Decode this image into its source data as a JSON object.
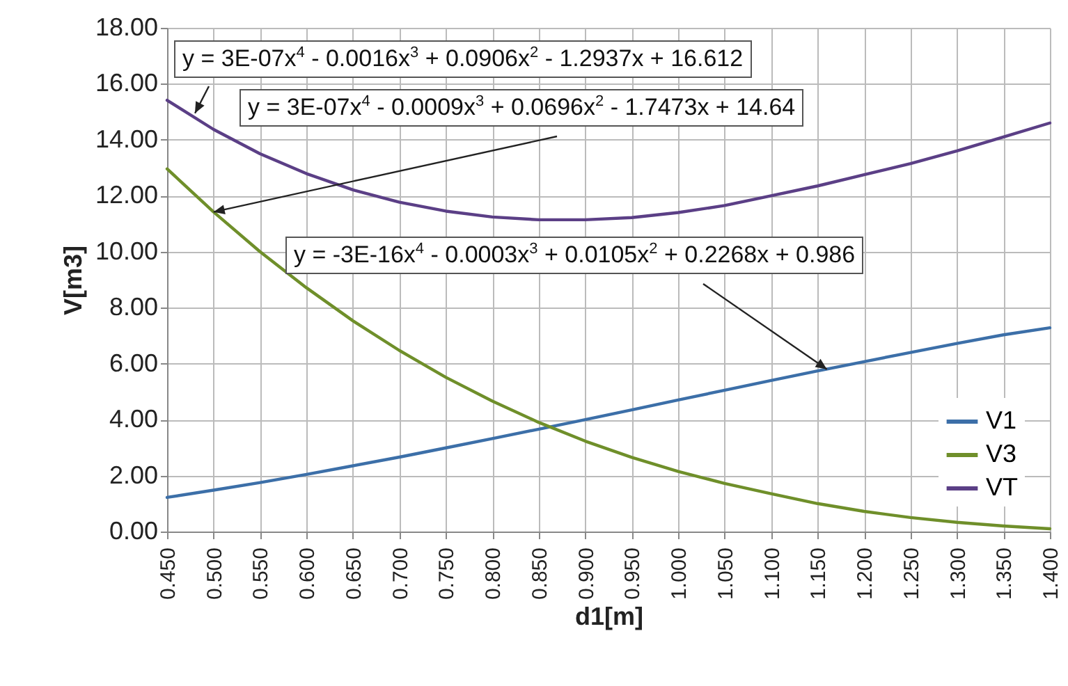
{
  "chart_data": {
    "type": "line",
    "xlabel": "d1[m]",
    "ylabel": "V[m3]",
    "x": [
      0.45,
      0.5,
      0.55,
      0.6,
      0.65,
      0.7,
      0.75,
      0.8,
      0.85,
      0.9,
      0.95,
      1.0,
      1.05,
      1.1,
      1.15,
      1.2,
      1.25,
      1.3,
      1.35,
      1.4
    ],
    "series": [
      {
        "name": "V1",
        "color": "#3c6fa8",
        "values": [
          1.22,
          1.48,
          1.75,
          2.04,
          2.35,
          2.66,
          2.99,
          3.32,
          3.66,
          4.0,
          4.35,
          4.7,
          5.05,
          5.4,
          5.74,
          6.07,
          6.4,
          6.72,
          7.03,
          7.28
        ]
      },
      {
        "name": "V3",
        "color": "#6f8f2a",
        "values": [
          12.96,
          11.42,
          10.0,
          8.71,
          7.53,
          6.47,
          5.51,
          4.66,
          3.9,
          3.23,
          2.65,
          2.15,
          1.72,
          1.35,
          1.0,
          0.72,
          0.5,
          0.33,
          0.2,
          0.1
        ]
      },
      {
        "name": "VT",
        "color": "#5b3f86",
        "values": [
          15.41,
          14.37,
          13.5,
          12.79,
          12.21,
          11.77,
          11.45,
          11.24,
          11.14,
          11.14,
          11.22,
          11.4,
          11.65,
          12.0,
          12.35,
          12.75,
          13.15,
          13.6,
          14.1,
          14.6
        ]
      }
    ],
    "xlim": [
      0.45,
      1.4
    ],
    "xticks": [
      {
        "value": 0.45,
        "label": "0.450"
      },
      {
        "value": 0.5,
        "label": "0.500"
      },
      {
        "value": 0.55,
        "label": "0.550"
      },
      {
        "value": 0.6,
        "label": "0.600"
      },
      {
        "value": 0.65,
        "label": "0.650"
      },
      {
        "value": 0.7,
        "label": "0.700"
      },
      {
        "value": 0.75,
        "label": "0.750"
      },
      {
        "value": 0.8,
        "label": "0.800"
      },
      {
        "value": 0.85,
        "label": "0.850"
      },
      {
        "value": 0.9,
        "label": "0.900"
      },
      {
        "value": 0.95,
        "label": "0.950"
      },
      {
        "value": 1.0,
        "label": "1.000"
      },
      {
        "value": 1.05,
        "label": "1.050"
      },
      {
        "value": 1.1,
        "label": "1.100"
      },
      {
        "value": 1.15,
        "label": "1.150"
      },
      {
        "value": 1.2,
        "label": "1.200"
      },
      {
        "value": 1.25,
        "label": "1.250"
      },
      {
        "value": 1.3,
        "label": "1.300"
      },
      {
        "value": 1.35,
        "label": "1.350"
      },
      {
        "value": 1.4,
        "label": "1.400"
      }
    ],
    "ylim": [
      0,
      18
    ],
    "yticks": [
      {
        "value": 0,
        "label": "0.00"
      },
      {
        "value": 2,
        "label": "2.00"
      },
      {
        "value": 4,
        "label": "4.00"
      },
      {
        "value": 6,
        "label": "6.00"
      },
      {
        "value": 8,
        "label": "8.00"
      },
      {
        "value": 10,
        "label": "10.00"
      },
      {
        "value": 12,
        "label": "12.00"
      },
      {
        "value": 14,
        "label": "14.00"
      },
      {
        "value": 16,
        "label": "16.00"
      },
      {
        "value": 18,
        "label": "18.00"
      }
    ],
    "grid": true,
    "legend": "bottom right",
    "annotations": [
      {
        "text": "y = 3E-07x$^{4}$ - 0.0016x$^{3}$ + 0.0906x$^{2}$ - 1.2937x + 16.612",
        "x": 0.48,
        "y": 14.95
      },
      {
        "text": "y = 3E-07x$^{4}$ - 0.0009x$^{3}$ + 0.0696x$^{2}$ - 1.7473x + 14.64",
        "x": 0.5,
        "y": 11.42
      },
      {
        "text": "y = -3E-16x$^{4}$ - 0.0003x$^{3}$ + 0.0105x$^{2}$ + 0.2268x + 0.986",
        "x": 1.16,
        "y": 5.8
      }
    ]
  }
}
